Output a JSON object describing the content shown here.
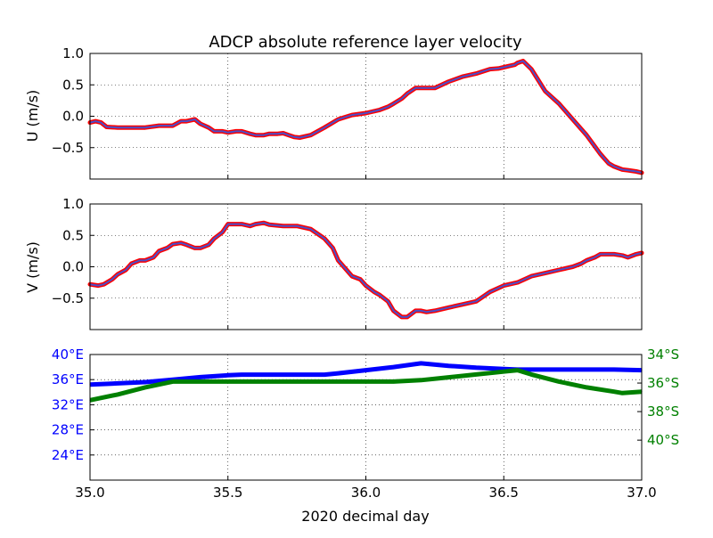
{
  "chart_data": [
    {
      "type": "line",
      "title": "ADCP absolute reference layer velocity",
      "ylabel": "U (m/s)",
      "xlim": [
        35.0,
        37.0
      ],
      "ylim": [
        -1.0,
        1.0
      ],
      "grid": true,
      "y_ticks": [
        "1.0",
        "0.5",
        "0.0",
        "−0.5"
      ],
      "y_tick_values": [
        1.0,
        0.5,
        0.0,
        -0.5
      ],
      "colors": {
        "raw": "#ff0000",
        "smooth": "#4b50c8"
      },
      "x": [
        35.0,
        35.02,
        35.04,
        35.06,
        35.1,
        35.15,
        35.2,
        35.25,
        35.3,
        35.33,
        35.35,
        35.38,
        35.4,
        35.43,
        35.45,
        35.48,
        35.5,
        35.53,
        35.55,
        35.58,
        35.6,
        35.63,
        35.65,
        35.68,
        35.7,
        35.72,
        35.74,
        35.76,
        35.8,
        35.85,
        35.9,
        35.95,
        36.0,
        36.05,
        36.08,
        36.1,
        36.13,
        36.15,
        36.18,
        36.2,
        36.25,
        36.3,
        36.35,
        36.4,
        36.45,
        36.48,
        36.5,
        36.52,
        36.54,
        36.55,
        36.57,
        36.6,
        36.65,
        36.7,
        36.75,
        36.8,
        36.85,
        36.88,
        36.9,
        36.93,
        36.95,
        36.98,
        37.0
      ],
      "values": [
        -0.1,
        -0.08,
        -0.1,
        -0.17,
        -0.18,
        -0.18,
        -0.18,
        -0.15,
        -0.15,
        -0.08,
        -0.08,
        -0.05,
        -0.12,
        -0.18,
        -0.24,
        -0.24,
        -0.26,
        -0.24,
        -0.24,
        -0.28,
        -0.3,
        -0.3,
        -0.28,
        -0.28,
        -0.27,
        -0.3,
        -0.33,
        -0.34,
        -0.3,
        -0.18,
        -0.05,
        0.02,
        0.05,
        0.1,
        0.15,
        0.2,
        0.28,
        0.36,
        0.45,
        0.45,
        0.45,
        0.55,
        0.63,
        0.68,
        0.75,
        0.76,
        0.78,
        0.8,
        0.82,
        0.85,
        0.88,
        0.75,
        0.4,
        0.2,
        -0.05,
        -0.3,
        -0.6,
        -0.75,
        -0.8,
        -0.85,
        -0.86,
        -0.88,
        -0.9
      ]
    },
    {
      "type": "line",
      "ylabel": "V (m/s)",
      "xlim": [
        35.0,
        37.0
      ],
      "ylim": [
        -1.0,
        1.0
      ],
      "grid": true,
      "y_ticks": [
        "1.0",
        "0.5",
        "0.0",
        "−0.5"
      ],
      "y_tick_values": [
        1.0,
        0.5,
        0.0,
        -0.5
      ],
      "colors": {
        "raw": "#ff0000",
        "smooth": "#4b50c8"
      },
      "x": [
        35.0,
        35.03,
        35.05,
        35.08,
        35.1,
        35.13,
        35.15,
        35.18,
        35.2,
        35.23,
        35.25,
        35.28,
        35.3,
        35.33,
        35.35,
        35.38,
        35.4,
        35.43,
        35.45,
        35.48,
        35.5,
        35.53,
        35.55,
        35.58,
        35.6,
        35.63,
        35.65,
        35.7,
        35.75,
        35.8,
        35.85,
        35.88,
        35.9,
        35.93,
        35.95,
        35.98,
        36.0,
        36.03,
        36.05,
        36.08,
        36.1,
        36.13,
        36.15,
        36.18,
        36.2,
        36.22,
        36.25,
        36.3,
        36.35,
        36.4,
        36.45,
        36.5,
        36.55,
        36.6,
        36.65,
        36.7,
        36.75,
        36.78,
        36.8,
        36.83,
        36.85,
        36.88,
        36.9,
        36.93,
        36.95,
        36.98,
        37.0
      ],
      "values": [
        -0.28,
        -0.3,
        -0.28,
        -0.2,
        -0.12,
        -0.05,
        0.05,
        0.1,
        0.1,
        0.15,
        0.25,
        0.3,
        0.36,
        0.38,
        0.35,
        0.3,
        0.3,
        0.35,
        0.45,
        0.55,
        0.68,
        0.68,
        0.68,
        0.65,
        0.68,
        0.7,
        0.67,
        0.65,
        0.65,
        0.6,
        0.45,
        0.3,
        0.1,
        -0.05,
        -0.15,
        -0.2,
        -0.3,
        -0.4,
        -0.45,
        -0.55,
        -0.7,
        -0.8,
        -0.8,
        -0.7,
        -0.7,
        -0.72,
        -0.7,
        -0.65,
        -0.6,
        -0.55,
        -0.4,
        -0.3,
        -0.25,
        -0.15,
        -0.1,
        -0.05,
        0.0,
        0.05,
        0.1,
        0.15,
        0.2,
        0.2,
        0.2,
        0.18,
        0.15,
        0.2,
        0.22
      ]
    },
    {
      "type": "line",
      "xlabel": "2020 decimal day",
      "xlim": [
        35.0,
        37.0
      ],
      "x_ticks": [
        "35.0",
        "35.5",
        "36.0",
        "36.5",
        "37.0"
      ],
      "x_tick_values": [
        35.0,
        35.5,
        36.0,
        36.5,
        37.0
      ],
      "grid": true,
      "left_axis": {
        "ylim": [
          20,
          40
        ],
        "ticks": [
          "40°E",
          "36°E",
          "32°E",
          "28°E",
          "24°E"
        ],
        "tick_values": [
          40,
          36,
          32,
          28,
          24
        ],
        "color": "#0000ff"
      },
      "right_axis": {
        "ylim": [
          -42.8,
          -34
        ],
        "ticks": [
          "34°S",
          "36°S",
          "38°S",
          "40°S"
        ],
        "tick_values": [
          -34,
          -36,
          -38,
          -40
        ],
        "color": "#008000"
      },
      "series": [
        {
          "axis": "left",
          "color": "#0000ff",
          "x": [
            35.0,
            35.1,
            35.2,
            35.3,
            35.4,
            35.5,
            35.55,
            35.6,
            35.7,
            35.85,
            35.9,
            36.0,
            36.1,
            36.2,
            36.3,
            36.4,
            36.5,
            36.55,
            36.6,
            36.7,
            36.8,
            36.9,
            37.0
          ],
          "values": [
            35.2,
            35.4,
            35.6,
            36.0,
            36.4,
            36.7,
            36.8,
            36.8,
            36.8,
            36.8,
            37.0,
            37.5,
            38.0,
            38.6,
            38.2,
            37.9,
            37.7,
            37.6,
            37.6,
            37.6,
            37.6,
            37.6,
            37.5
          ]
        },
        {
          "axis": "right",
          "color": "#008000",
          "x": [
            35.0,
            35.1,
            35.2,
            35.3,
            35.4,
            35.5,
            35.6,
            35.7,
            35.8,
            35.9,
            36.0,
            36.1,
            36.2,
            36.3,
            36.4,
            36.5,
            36.55,
            36.6,
            36.7,
            36.8,
            36.9,
            36.93,
            37.0
          ],
          "values": [
            -37.2,
            -36.8,
            -36.3,
            -35.9,
            -35.9,
            -35.9,
            -35.9,
            -35.9,
            -35.9,
            -35.9,
            -35.9,
            -35.9,
            -35.8,
            -35.6,
            -35.4,
            -35.2,
            -35.1,
            -35.4,
            -35.9,
            -36.3,
            -36.6,
            -36.7,
            -36.6
          ]
        }
      ]
    }
  ]
}
